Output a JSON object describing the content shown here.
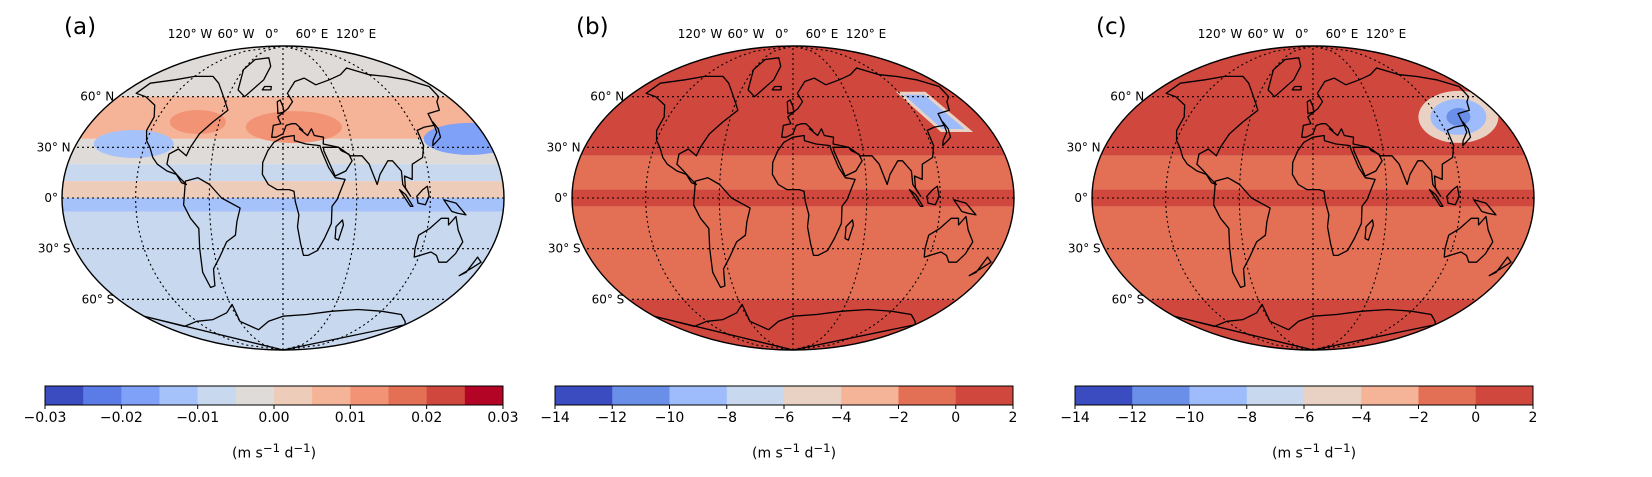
{
  "lon_labels": [
    "120° W",
    "60° W",
    "0°",
    "60° E",
    "120° E"
  ],
  "lat_labels": [
    "60° N",
    "30° N",
    "0°",
    "30° S",
    "60° S"
  ],
  "units_prefix": "(m s",
  "units_exp1": "−1",
  "units_mid": " d",
  "units_exp2": "−1",
  "units_suffix": ")",
  "panels": [
    {
      "label": "(a)",
      "cbar_ticks": [
        "−0.03",
        "−0.02",
        "−0.01",
        "0.00",
        "0.01",
        "0.02",
        "0.03"
      ],
      "cbar_colors": [
        "#3b4cc0",
        "#5b7ce6",
        "#7fa1f7",
        "#a6c2fb",
        "#c7d8ef",
        "#dfdbd8",
        "#eeccba",
        "#f5b397",
        "#f19374",
        "#e36f55",
        "#d0473d",
        "#b40426"
      ],
      "bands_by_latitude": [
        {
          "lat": [
            60,
            90
          ],
          "color": "#dfdbd8"
        },
        {
          "lat": [
            35,
            60
          ],
          "color": "#f5b397"
        },
        {
          "lat": [
            20,
            35
          ],
          "color": "#dfdbd8"
        },
        {
          "lat": [
            10,
            20
          ],
          "color": "#c7d8ef"
        },
        {
          "lat": [
            0,
            10
          ],
          "color": "#eeccba"
        },
        {
          "lat": [
            -8,
            0
          ],
          "color": "#a6c2fb"
        },
        {
          "lat": [
            -60,
            -8
          ],
          "color": "#c7d8ef"
        },
        {
          "lat": [
            -90,
            -60
          ],
          "color": "#c7d8ef"
        }
      ]
    },
    {
      "label": "(b)",
      "cbar_ticks": [
        "−14",
        "−12",
        "−10",
        "−8",
        "−6",
        "−4",
        "−2",
        "0",
        "2"
      ],
      "cbar_colors": [
        "#3b4cc0",
        "#6a8fe9",
        "#9ebcfb",
        "#c7d8ef",
        "#e9d2c4",
        "#f5b397",
        "#e36f55",
        "#d0473d"
      ],
      "bands_by_latitude": [
        {
          "lat": [
            25,
            90
          ],
          "color": "#d0473d"
        },
        {
          "lat": [
            5,
            25
          ],
          "color": "#e36f55"
        },
        {
          "lat": [
            -5,
            5
          ],
          "color": "#d0473d"
        },
        {
          "lat": [
            -60,
            -5
          ],
          "color": "#e36f55"
        },
        {
          "lat": [
            -90,
            -60
          ],
          "color": "#d0473d"
        }
      ]
    },
    {
      "label": "(c)",
      "cbar_ticks": [
        "−14",
        "−12",
        "−10",
        "−8",
        "−6",
        "−4",
        "−2",
        "0",
        "2"
      ],
      "cbar_colors": [
        "#3b4cc0",
        "#6a8fe9",
        "#9ebcfb",
        "#c7d8ef",
        "#e9d2c4",
        "#f5b397",
        "#e36f55",
        "#d0473d"
      ],
      "bands_by_latitude": [
        {
          "lat": [
            25,
            90
          ],
          "color": "#d0473d"
        },
        {
          "lat": [
            5,
            25
          ],
          "color": "#e36f55"
        },
        {
          "lat": [
            -5,
            5
          ],
          "color": "#d0473d"
        },
        {
          "lat": [
            -60,
            -5
          ],
          "color": "#e36f55"
        },
        {
          "lat": [
            -90,
            -60
          ],
          "color": "#d0473d"
        }
      ]
    }
  ]
}
